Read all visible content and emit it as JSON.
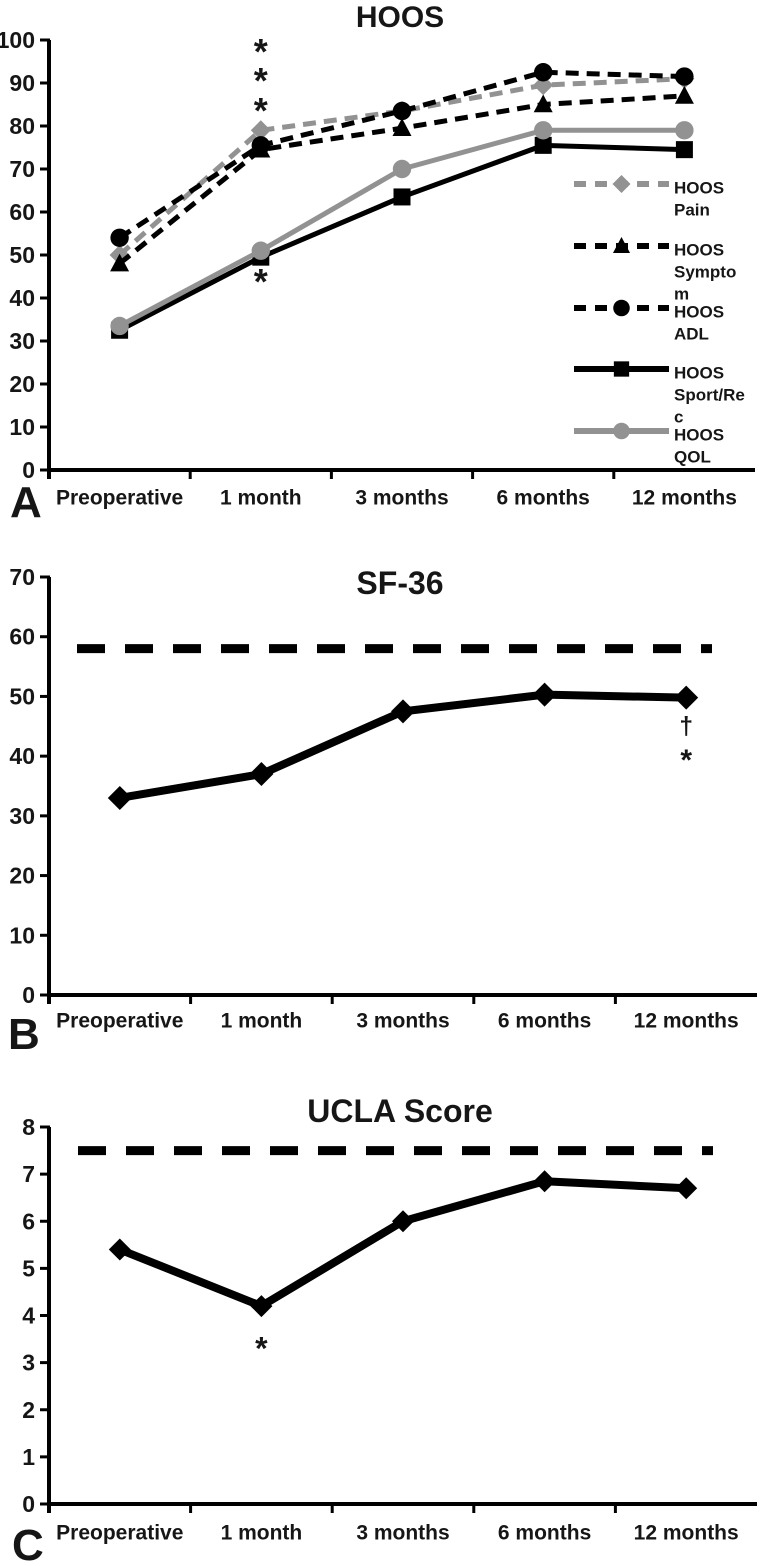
{
  "figure": {
    "background": "#ffffff",
    "text_color": "#161616",
    "line_black": "#000000",
    "line_gray": "#929292"
  },
  "chart_data": [
    {
      "id": "hoos",
      "type": "line",
      "title": "HOOS",
      "panel_label": "A",
      "categories": [
        "Preoperative",
        "1 month",
        "3 months",
        "6 months",
        "12 months"
      ],
      "ylim": [
        0,
        100
      ],
      "yticks": [
        0,
        10,
        20,
        30,
        40,
        50,
        60,
        70,
        80,
        90,
        100
      ],
      "xlabel": "",
      "ylabel": "",
      "grid": false,
      "legend_position": "inside-right",
      "series": [
        {
          "name": "HOOS Pain",
          "legend_lines": [
            "HOOS",
            "Pain"
          ],
          "values": [
            50,
            79,
            83.5,
            89.5,
            91
          ],
          "color": "#929292",
          "dashed": true,
          "marker": "diamond"
        },
        {
          "name": "HOOS Symptom",
          "legend_lines": [
            "HOOS",
            "Sympto",
            "m"
          ],
          "values": [
            48,
            74.5,
            79.5,
            85,
            87
          ],
          "color": "#000000",
          "dashed": true,
          "marker": "triangle"
        },
        {
          "name": "HOOS ADL",
          "legend_lines": [
            "HOOS",
            "ADL"
          ],
          "values": [
            54,
            75.5,
            83.5,
            92.5,
            91.5
          ],
          "color": "#000000",
          "dashed": true,
          "marker": "circle"
        },
        {
          "name": "HOOS Sport/Rec",
          "legend_lines": [
            "HOOS",
            "Sport/Re",
            "c"
          ],
          "values": [
            32.5,
            49.5,
            63.5,
            75.5,
            74.5
          ],
          "color": "#000000",
          "dashed": false,
          "marker": "square"
        },
        {
          "name": "HOOS QOL",
          "legend_lines": [
            "HOOS",
            "QOL"
          ],
          "values": [
            33.5,
            51,
            70,
            79,
            79
          ],
          "color": "#929292",
          "dashed": false,
          "marker": "circle"
        }
      ],
      "annotations": [
        {
          "text": "*",
          "category": 1,
          "value": 98.5
        },
        {
          "text": "*",
          "category": 1,
          "value": 91.8
        },
        {
          "text": "*",
          "category": 1,
          "value": 84.8
        },
        {
          "text": "*",
          "category": 1,
          "value": 45
        }
      ]
    },
    {
      "id": "sf36",
      "type": "line",
      "title": "SF-36",
      "panel_label": "B",
      "categories": [
        "Preoperative",
        "1 month",
        "3 months",
        "6 months",
        "12 months"
      ],
      "ylim": [
        0,
        70
      ],
      "yticks": [
        0,
        10,
        20,
        30,
        40,
        50,
        60,
        70
      ],
      "xlabel": "",
      "ylabel": "",
      "grid": false,
      "series": [
        {
          "name": "SF-36",
          "values": [
            33,
            37,
            47.5,
            50.3,
            49.8
          ],
          "color": "#000000",
          "dashed": false,
          "marker": "diamond"
        }
      ],
      "reference_line": {
        "value": 58,
        "style": "dashed",
        "color": "#000000"
      },
      "annotations": [
        {
          "text": "†",
          "category": 4,
          "value": 45
        },
        {
          "text": "*",
          "category": 4,
          "value": 40
        }
      ]
    },
    {
      "id": "ucla",
      "type": "line",
      "title": "UCLA Score",
      "panel_label": "C",
      "categories": [
        "Preoperative",
        "1 month",
        "3 months",
        "6 months",
        "12 months"
      ],
      "ylim": [
        0,
        8
      ],
      "yticks": [
        0,
        1,
        2,
        3,
        4,
        5,
        6,
        7,
        8
      ],
      "xlabel": "",
      "ylabel": "",
      "grid": false,
      "series": [
        {
          "name": "UCLA Score",
          "values": [
            5.4,
            4.2,
            6.0,
            6.85,
            6.7
          ],
          "color": "#000000",
          "dashed": false,
          "marker": "diamond"
        }
      ],
      "reference_line": {
        "value": 7.5,
        "style": "dashed",
        "color": "#000000"
      },
      "annotations": [
        {
          "text": "*",
          "category": 1,
          "value": 3.4
        }
      ]
    }
  ]
}
